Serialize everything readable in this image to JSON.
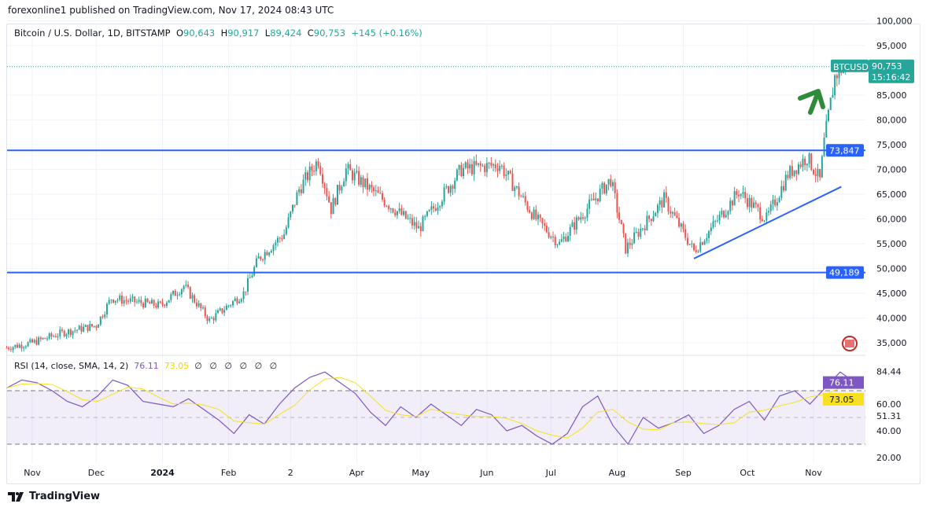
{
  "publish_line": "forexonline1 published on TradingView.com, Nov 17, 2024 08:43 UTC",
  "legend": {
    "symbol": "Bitcoin / U.S. Dollar, 1D, BITSTAMP",
    "o_label": "O",
    "o": "90,643",
    "h_label": "H",
    "h": "90,917",
    "l_label": "L",
    "l": "89,424",
    "c_label": "C",
    "c": "90,753",
    "change": "+145 (+0.16%)"
  },
  "price_label": {
    "ticker": "BTCUSD",
    "price": "90,753",
    "countdown": "15:16:42"
  },
  "levels": {
    "resistance": "73,847",
    "support": "49,189"
  },
  "rsi_legend": {
    "title": "RSI (14, close, SMA, 14, 2)",
    "rsi": "76.11",
    "sma": "73.05",
    "empty": "∅ ∅ ∅ ∅ ∅ ∅"
  },
  "brand": "TradingView",
  "colors": {
    "up": "#26a69a",
    "down": "#ef5350",
    "level": "#2962ff",
    "rsi": "#7e57c2",
    "sma": "#f7e11f",
    "arrow": "#2e8b3a"
  },
  "chart_data": [
    {
      "type": "candlestick",
      "title": "Bitcoin / U.S. Dollar, 1D, BITSTAMP",
      "ylim": [
        33000,
        100000
      ],
      "y_ticks": [
        "100,000",
        "95,000",
        "85,000",
        "80,000",
        "75,000",
        "70,000",
        "65,000",
        "60,000",
        "55,000",
        "50,000",
        "45,000",
        "40,000",
        "35,000"
      ],
      "x_ticks": [
        "Nov",
        "Dec",
        "2024",
        "Feb",
        "2",
        "Apr",
        "May",
        "Jun",
        "Jul",
        "Aug",
        "Sep",
        "Oct",
        "Nov"
      ],
      "x_tick_dates": [
        "2023-11-01",
        "2023-12-01",
        "2024-01-01",
        "2024-02-01",
        "2024-03-01",
        "2024-04-01",
        "2024-05-01",
        "2024-06-01",
        "2024-07-01",
        "2024-08-01",
        "2024-09-01",
        "2024-10-01",
        "2024-11-01"
      ],
      "approx_closes": [
        [
          "2023-10-20",
          34000
        ],
        [
          "2023-11-01",
          35000
        ],
        [
          "2023-11-15",
          37000
        ],
        [
          "2023-12-01",
          38500
        ],
        [
          "2023-12-08",
          44000
        ],
        [
          "2023-12-31",
          42500
        ],
        [
          "2024-01-11",
          46500
        ],
        [
          "2024-01-23",
          39500
        ],
        [
          "2024-02-08",
          45000
        ],
        [
          "2024-02-15",
          52000
        ],
        [
          "2024-02-27",
          57000
        ],
        [
          "2024-03-05",
          66000
        ],
        [
          "2024-03-14",
          72000
        ],
        [
          "2024-03-20",
          62000
        ],
        [
          "2024-03-27",
          70000
        ],
        [
          "2024-04-13",
          64000
        ],
        [
          "2024-04-30",
          58000
        ],
        [
          "2024-05-20",
          70000
        ],
        [
          "2024-06-07",
          71000
        ],
        [
          "2024-06-24",
          60000
        ],
        [
          "2024-07-05",
          55000
        ],
        [
          "2024-07-14",
          60000
        ],
        [
          "2024-07-29",
          68000
        ],
        [
          "2024-08-05",
          54000
        ],
        [
          "2024-08-23",
          64000
        ],
        [
          "2024-09-06",
          53500
        ],
        [
          "2024-09-27",
          65500
        ],
        [
          "2024-10-10",
          60000
        ],
        [
          "2024-10-20",
          69000
        ],
        [
          "2024-10-29",
          72500
        ],
        [
          "2024-11-04",
          67800
        ],
        [
          "2024-11-06",
          75500
        ],
        [
          "2024-11-11",
          88700
        ],
        [
          "2024-11-13",
          90000
        ],
        [
          "2024-11-16",
          90753
        ]
      ],
      "horizontal_levels": [
        73847,
        49189
      ],
      "trendline": [
        [
          "2024-09-06",
          52000
        ],
        [
          "2024-11-14",
          66500
        ]
      ]
    },
    {
      "type": "line",
      "title": "RSI (14, close, SMA, 14, 2)",
      "ylim": [
        18,
        90
      ],
      "y_ticks": [
        "84.44",
        "60.00",
        "51.31",
        "40.00",
        "20.00"
      ],
      "bands": [
        70,
        50,
        30
      ],
      "series": [
        {
          "name": "RSI",
          "weekly_values": [
            72,
            78,
            76,
            70,
            62,
            58,
            66,
            78,
            74,
            62,
            60,
            58,
            64,
            56,
            48,
            38,
            52,
            45,
            60,
            72,
            80,
            84,
            76,
            68,
            54,
            44,
            58,
            50,
            60,
            52,
            44,
            56,
            52,
            40,
            44,
            36,
            30,
            38,
            58,
            66,
            44,
            30,
            50,
            42,
            46,
            52,
            38,
            44,
            56,
            62,
            48,
            66,
            70,
            60,
            72,
            84,
            76
          ]
        }
      ],
      "latest": {
        "rsi": 76.11,
        "sma": 73.05
      }
    }
  ]
}
